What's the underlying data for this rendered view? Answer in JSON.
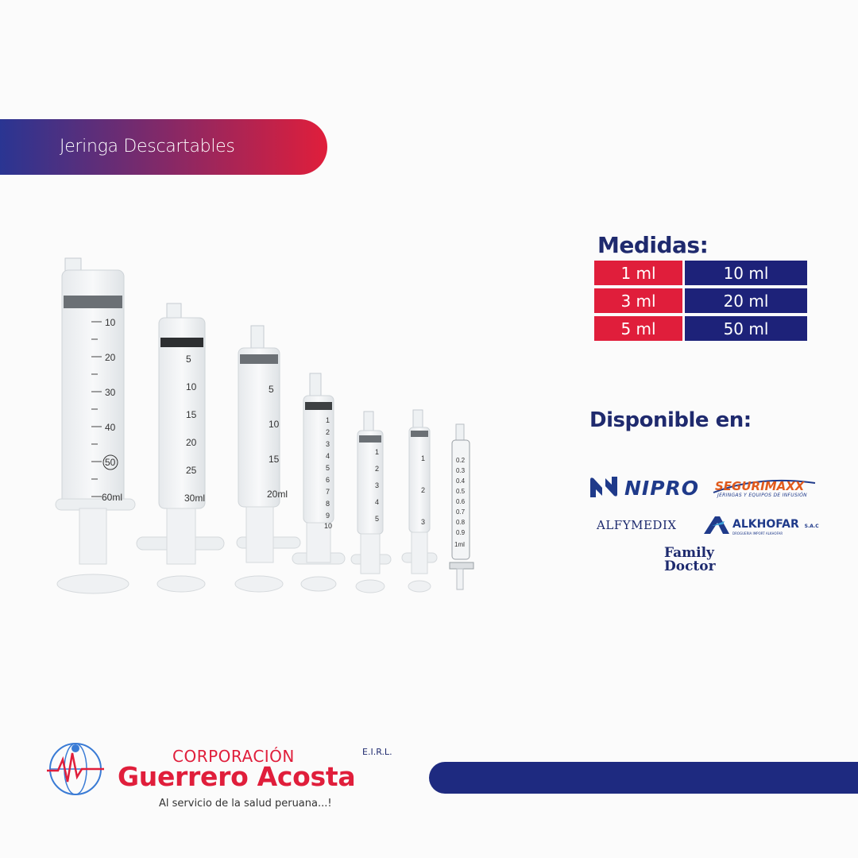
{
  "banner": {
    "title": "Jeringa Descartables"
  },
  "medidas": {
    "label": "Medidas:",
    "rows": [
      {
        "left": "1 ml",
        "right": "10 ml"
      },
      {
        "left": "3 ml",
        "right": "20 ml"
      },
      {
        "left": "5 ml",
        "right": "50 ml"
      }
    ]
  },
  "disponible": {
    "label": "Disponible en:",
    "brands": {
      "nipro": "NIPRO",
      "segurimaxx": "SEGURIMAXX",
      "segurimaxx_sub": "JERINGAS Y EQUIPOS DE INFUSIÓN",
      "alfymedix": "ALFYMEDIX",
      "alkhofar": "ALKHOFAR",
      "alkhofar_suffix": "S.A.C",
      "alkhofar_sub": "DROGUERIA IMPORT ALKHOFAR",
      "family_line1": "Family",
      "family_line2": "Doctor"
    }
  },
  "syringe_labels": {
    "s60": [
      "10",
      "20",
      "30",
      "40",
      "50",
      "60ml"
    ],
    "s30": [
      "5",
      "10",
      "15",
      "20",
      "25",
      "30ml"
    ],
    "s20": [
      "5",
      "10",
      "15",
      "20ml"
    ],
    "s10": [
      "1",
      "2",
      "3",
      "4",
      "5",
      "6",
      "7",
      "8",
      "9",
      "10"
    ],
    "s5": [
      "1",
      "2",
      "3",
      "4",
      "5"
    ],
    "s3": [
      "1",
      "2",
      "3"
    ],
    "s1": [
      "0.2",
      "0.3",
      "0.4",
      "0.5",
      "0.6",
      "0.7",
      "0.8",
      "0.9",
      "1ml"
    ]
  },
  "company": {
    "title": "CORPORACIÓN",
    "name": "Guerrero Acosta",
    "suffix": "E.I.R.L.",
    "slogan": "Al servicio de la salud peruana...!"
  },
  "colors": {
    "navy": "#1d2279",
    "red": "#e01e3b",
    "text_navy": "#1f2a6e"
  }
}
